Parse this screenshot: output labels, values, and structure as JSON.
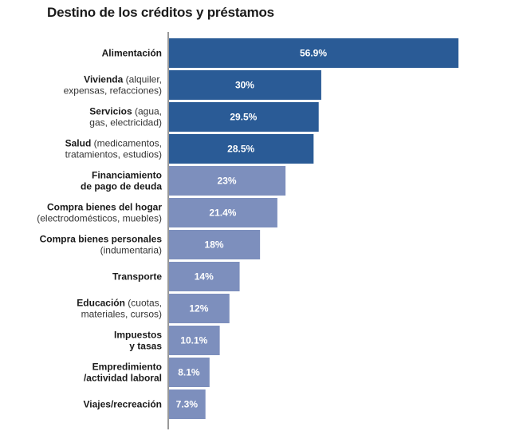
{
  "chart_data": {
    "type": "bar",
    "orientation": "horizontal",
    "title": "Destino de los créditos y préstamos",
    "xlim": [
      0,
      60
    ],
    "categories": [
      {
        "lines": [
          [
            {
              "t": "Alimentación",
              "b": true
            }
          ]
        ]
      },
      {
        "lines": [
          [
            {
              "t": "Vivienda",
              "b": true
            },
            {
              "t": " (alquiler,",
              "b": false
            }
          ],
          [
            {
              "t": "expensas, refacciones)",
              "b": false
            }
          ]
        ]
      },
      {
        "lines": [
          [
            {
              "t": "Servicios",
              "b": true
            },
            {
              "t": " (agua,",
              "b": false
            }
          ],
          [
            {
              "t": "gas, electricidad)",
              "b": false
            }
          ]
        ]
      },
      {
        "lines": [
          [
            {
              "t": "Salud",
              "b": true
            },
            {
              "t": " (medicamentos,",
              "b": false
            }
          ],
          [
            {
              "t": "tratamientos, estudios)",
              "b": false
            }
          ]
        ]
      },
      {
        "lines": [
          [
            {
              "t": "Financiamiento",
              "b": true
            }
          ],
          [
            {
              "t": "de pago de deuda",
              "b": true
            }
          ]
        ]
      },
      {
        "lines": [
          [
            {
              "t": "Compra bienes del hogar",
              "b": true
            }
          ],
          [
            {
              "t": "(electrodomésticos, muebles)",
              "b": false
            }
          ]
        ]
      },
      {
        "lines": [
          [
            {
              "t": "Compra bienes personales",
              "b": true
            }
          ],
          [
            {
              "t": "(indumentaria)",
              "b": false
            }
          ]
        ]
      },
      {
        "lines": [
          [
            {
              "t": "Transporte",
              "b": true
            }
          ]
        ]
      },
      {
        "lines": [
          [
            {
              "t": "Educación",
              "b": true
            },
            {
              "t": " (cuotas,",
              "b": false
            }
          ],
          [
            {
              "t": "materiales, cursos)",
              "b": false
            }
          ]
        ]
      },
      {
        "lines": [
          [
            {
              "t": "Impuestos",
              "b": true
            }
          ],
          [
            {
              "t": "y tasas",
              "b": true
            }
          ]
        ]
      },
      {
        "lines": [
          [
            {
              "t": "Empredimiento",
              "b": true
            }
          ],
          [
            {
              "t": "/actividad laboral",
              "b": true
            }
          ]
        ]
      },
      {
        "lines": [
          [
            {
              "t": "Viajes/recreación",
              "b": true
            }
          ]
        ]
      }
    ],
    "values": [
      56.9,
      30,
      29.5,
      28.5,
      23,
      21.4,
      18,
      14,
      12,
      10.1,
      8.1,
      7.3
    ],
    "value_labels": [
      "56.9%",
      "30%",
      "29.5%",
      "28.5%",
      "23%",
      "21.4%",
      "18%",
      "14%",
      "12%",
      "10.1%",
      "8.1%",
      "7.3%"
    ],
    "colors": [
      "#2a5b96",
      "#2a5b96",
      "#2a5b96",
      "#2a5b96",
      "#7d8fbd",
      "#7d8fbd",
      "#7d8fbd",
      "#7d8fbd",
      "#7d8fbd",
      "#7d8fbd",
      "#7d8fbd",
      "#7d8fbd"
    ],
    "grid": false,
    "legend": "none"
  }
}
